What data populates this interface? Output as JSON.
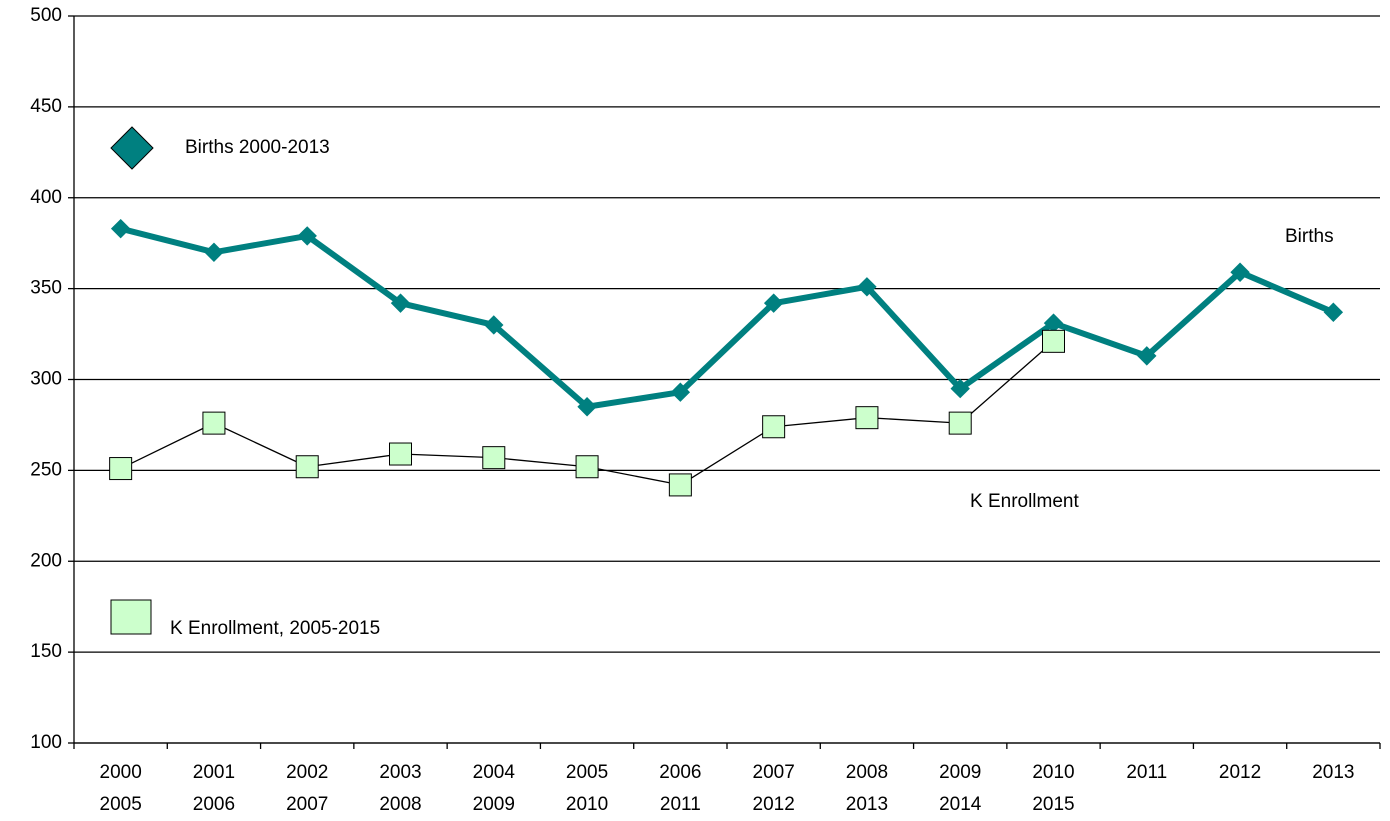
{
  "chart_data": {
    "type": "line",
    "categories": [
      "2000",
      "2001",
      "2002",
      "2003",
      "2004",
      "2005",
      "2006",
      "2007",
      "2008",
      "2009",
      "2010",
      "2011",
      "2012",
      "2013"
    ],
    "categories_secondary": [
      "2005",
      "2006",
      "2007",
      "2008",
      "2009",
      "2010",
      "2011",
      "2012",
      "2013",
      "2014",
      "2015",
      null,
      null,
      null
    ],
    "series": [
      {
        "name": "Births 2000-2013",
        "color": "#008080",
        "marker": "diamond",
        "values": [
          383,
          370,
          379,
          342,
          330,
          285,
          293,
          342,
          351,
          295,
          331,
          313,
          359,
          337
        ]
      },
      {
        "name": "K Enrollment, 2005-2015",
        "color": "#ccffcc",
        "marker": "square",
        "values": [
          251,
          276,
          252,
          259,
          257,
          252,
          242,
          274,
          279,
          276,
          321,
          null,
          null,
          null
        ]
      }
    ],
    "annotations": [
      "Births",
      "K Enrollment"
    ],
    "ylim": [
      100,
      500
    ],
    "yticks": [
      100,
      150,
      200,
      250,
      300,
      350,
      400,
      450,
      500
    ],
    "grid": true
  }
}
